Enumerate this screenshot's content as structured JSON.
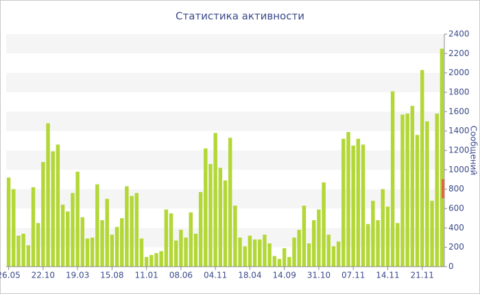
{
  "chart_data": {
    "type": "bar",
    "title": "Статистика активности",
    "y_label": "Сообщений",
    "categories": [
      "26.05",
      null,
      null,
      null,
      null,
      null,
      null,
      "22.10",
      null,
      null,
      null,
      null,
      null,
      null,
      "19.03",
      null,
      null,
      null,
      null,
      null,
      null,
      "15.08",
      null,
      null,
      null,
      null,
      null,
      null,
      "11.01",
      null,
      null,
      null,
      null,
      null,
      null,
      "08.06",
      null,
      null,
      null,
      null,
      null,
      null,
      "04.11",
      null,
      null,
      null,
      null,
      null,
      null,
      "18.04",
      null,
      null,
      null,
      null,
      null,
      null,
      "14.09",
      null,
      null,
      null,
      null,
      null,
      null,
      "31.10",
      null,
      null,
      null,
      null,
      null,
      null,
      "07.11",
      null,
      null,
      null,
      null,
      null,
      null,
      "14.11",
      null,
      null,
      null,
      null,
      null,
      null,
      "21.11",
      null,
      null,
      null,
      null
    ],
    "values": [
      920,
      800,
      320,
      340,
      220,
      820,
      450,
      1080,
      1480,
      1190,
      1260,
      640,
      570,
      760,
      980,
      510,
      290,
      300,
      850,
      480,
      700,
      330,
      410,
      500,
      830,
      730,
      760,
      290,
      100,
      120,
      140,
      160,
      590,
      550,
      270,
      380,
      300,
      560,
      340,
      770,
      1220,
      1060,
      1380,
      1020,
      890,
      1330,
      630,
      300,
      210,
      320,
      280,
      280,
      330,
      240,
      110,
      80,
      190,
      100,
      300,
      380,
      630,
      240,
      480,
      590,
      870,
      330,
      210,
      260,
      1320,
      1390,
      1250,
      1320,
      1260,
      440,
      680,
      480,
      800,
      620,
      1810,
      450,
      1570,
      1580,
      1660,
      1360,
      2030,
      1500,
      680,
      1580,
      2250
    ],
    "color": "#b3d737",
    "ylim": [
      0,
      2400
    ],
    "yticks": [
      0,
      200,
      400,
      600,
      800,
      1000,
      1200,
      1400,
      1600,
      1800,
      2000,
      2200,
      2400
    ],
    "grid": true
  }
}
